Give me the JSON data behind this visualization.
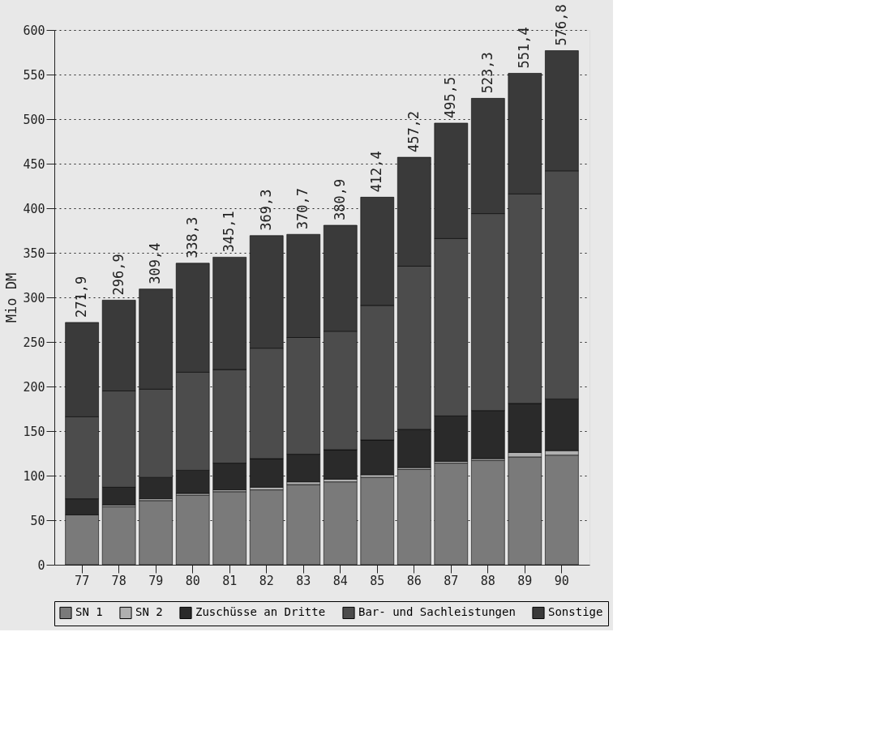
{
  "chart_data": {
    "type": "bar",
    "stacked": true,
    "ylabel": "Mio DM",
    "categories": [
      "77",
      "78",
      "79",
      "80",
      "81",
      "82",
      "83",
      "84",
      "85",
      "86",
      "87",
      "88",
      "89",
      "90"
    ],
    "series": [
      {
        "name": "SN 1",
        "color": "#7a7a7a",
        "values": [
          56,
          65,
          72,
          78,
          82,
          84,
          90,
          93,
          98,
          107,
          114,
          117,
          121,
          123
        ]
      },
      {
        "name": "SN 2",
        "color": "#b0b0b0",
        "values": [
          null,
          2,
          2,
          2,
          2,
          3,
          3,
          3,
          3,
          2,
          2,
          2,
          5,
          5
        ]
      },
      {
        "name": "Zuschüsse an Dritte",
        "color": "#2a2a2a",
        "values": [
          18,
          20,
          24,
          26,
          30,
          32,
          31,
          33,
          39,
          43,
          51,
          54,
          55,
          58
        ]
      },
      {
        "name": "Bar- und Sachleistungen",
        "color": "#4c4c4c",
        "values": [
          92,
          108,
          99,
          110,
          105,
          124,
          131,
          133,
          151,
          183,
          199,
          221,
          235,
          256
        ]
      },
      {
        "name": "Sonstige",
        "color": "#3a3a3a",
        "values": [
          105.9,
          101.9,
          112.4,
          122.3,
          126.1,
          126.3,
          115.7,
          118.9,
          121.4,
          122.2,
          129.5,
          129.3,
          135.4,
          134.8
        ]
      }
    ],
    "totals": [
      "271,9",
      "296,9",
      "309,4",
      "338,3",
      "345,1",
      "369,3",
      "370,7",
      "380,9",
      "412,4",
      "457,2",
      "495,5",
      "523,3",
      "551,4",
      "576,8"
    ],
    "ylim": [
      0,
      600
    ],
    "yticks": [
      0,
      50,
      100,
      150,
      200,
      250,
      300,
      350,
      400,
      450,
      500,
      550,
      600
    ],
    "grid": "y",
    "legend": "bottom"
  }
}
